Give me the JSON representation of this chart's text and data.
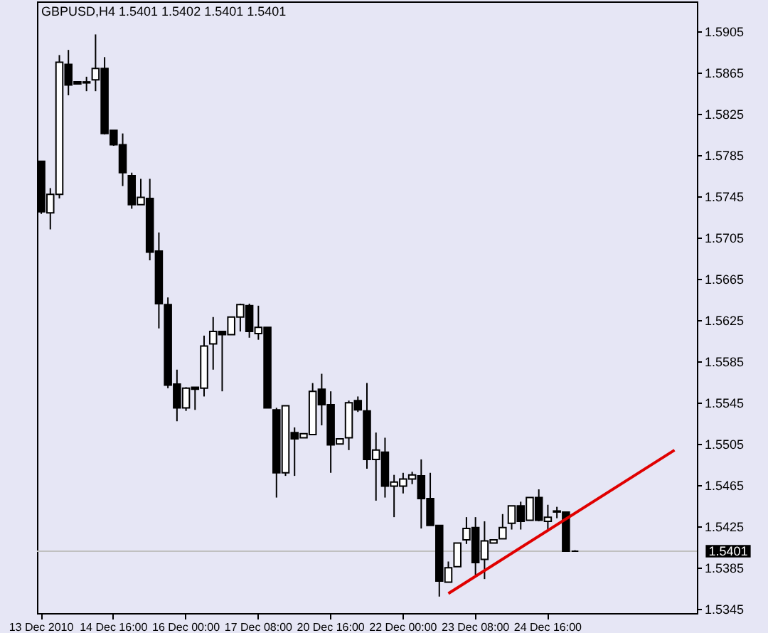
{
  "chart_data": {
    "type": "candlestick",
    "title": "GBPUSD,H4  1.5401 1.5402 1.5401 1.5401",
    "categories": [
      "13 Dec 2010",
      null,
      null,
      null,
      null,
      null,
      null,
      null,
      "14 Dec 16:00",
      null,
      null,
      null,
      null,
      null,
      null,
      null,
      "16 Dec 00:00",
      null,
      null,
      null,
      null,
      null,
      null,
      null,
      "17 Dec 08:00",
      null,
      null,
      null,
      null,
      null,
      null,
      null,
      "20 Dec 16:00",
      null,
      null,
      null,
      null,
      null,
      null,
      null,
      "22 Dec 00:00",
      null,
      null,
      null,
      null,
      null,
      null,
      null,
      "23 Dec 08:00",
      null,
      null,
      null,
      null,
      null,
      null,
      null,
      "24 Dec 16:00",
      null,
      null,
      null,
      null,
      null,
      null,
      null,
      null,
      null,
      null,
      null,
      null,
      null,
      null,
      null,
      null
    ],
    "ohlc": [
      [
        1.5779,
        1.5779,
        1.5728,
        1.573
      ],
      [
        1.5729,
        1.5753,
        1.5713,
        1.5747
      ],
      [
        1.5747,
        1.5882,
        1.5743,
        1.5875
      ],
      [
        1.5873,
        1.5887,
        1.5843,
        1.5853
      ],
      [
        1.5856,
        1.5856,
        1.5854,
        1.5854
      ],
      [
        1.5856,
        1.5861,
        1.5847,
        1.5855
      ],
      [
        1.5858,
        1.5902,
        1.5847,
        1.5869
      ],
      [
        1.5869,
        1.588,
        1.5805,
        1.5806
      ],
      [
        1.5809,
        1.5809,
        1.5794,
        1.5795
      ],
      [
        1.5795,
        1.5806,
        1.5755,
        1.5768
      ],
      [
        1.5765,
        1.5768,
        1.5733,
        1.5737
      ],
      [
        1.5737,
        1.5762,
        1.5737,
        1.5744
      ],
      [
        1.5743,
        1.5762,
        1.5683,
        1.5691
      ],
      [
        1.5692,
        1.571,
        1.5617,
        1.5641
      ],
      [
        1.564,
        1.5647,
        1.5559,
        1.5562
      ],
      [
        1.5563,
        1.5577,
        1.5527,
        1.554
      ],
      [
        1.554,
        1.556,
        1.5537,
        1.5559
      ],
      [
        1.556,
        1.556,
        1.5538,
        1.5558
      ],
      [
        1.5559,
        1.561,
        1.5551,
        1.56
      ],
      [
        1.5602,
        1.5628,
        1.5577,
        1.5614
      ],
      [
        1.5614,
        1.5614,
        1.5556,
        1.5611
      ],
      [
        1.5611,
        1.5628,
        1.5611,
        1.5628
      ],
      [
        1.5628,
        1.5641,
        1.5614,
        1.564
      ],
      [
        1.5639,
        1.5641,
        1.5608,
        1.5614
      ],
      [
        1.5612,
        1.5639,
        1.5606,
        1.5618
      ],
      [
        1.5618,
        1.5618,
        1.554,
        1.554
      ],
      [
        1.5538,
        1.554,
        1.5453,
        1.5477
      ],
      [
        1.5477,
        1.5542,
        1.5474,
        1.5542
      ],
      [
        1.5516,
        1.5521,
        1.5474,
        1.551
      ],
      [
        1.5511,
        1.5515,
        1.5511,
        1.5515
      ],
      [
        1.5514,
        1.5564,
        1.5514,
        1.5556
      ],
      [
        1.5558,
        1.5573,
        1.5523,
        1.5543
      ],
      [
        1.5543,
        1.5556,
        1.5477,
        1.5504
      ],
      [
        1.5505,
        1.551,
        1.5505,
        1.551
      ],
      [
        1.5511,
        1.5547,
        1.5499,
        1.5545
      ],
      [
        1.5547,
        1.5551,
        1.5536,
        1.5538
      ],
      [
        1.5537,
        1.5564,
        1.5481,
        1.549
      ],
      [
        1.549,
        1.5516,
        1.545,
        1.5499
      ],
      [
        1.5497,
        1.5511,
        1.5453,
        1.5464
      ],
      [
        1.5464,
        1.5475,
        1.5434,
        1.5468
      ],
      [
        1.5464,
        1.5477,
        1.5457,
        1.5471
      ],
      [
        1.5471,
        1.5478,
        1.5466,
        1.5475
      ],
      [
        1.5474,
        1.549,
        1.5423,
        1.5452
      ],
      [
        1.5452,
        1.5477,
        1.5426,
        1.5426
      ],
      [
        1.5426,
        1.5426,
        1.5357,
        1.5372
      ],
      [
        1.5371,
        1.5391,
        1.5371,
        1.5385
      ],
      [
        1.5386,
        1.5409,
        1.5386,
        1.5409
      ],
      [
        1.5412,
        1.5434,
        1.5408,
        1.5423
      ],
      [
        1.5424,
        1.5434,
        1.5378,
        1.539
      ],
      [
        1.5393,
        1.543,
        1.5374,
        1.5411
      ],
      [
        1.5409,
        1.5412,
        1.5409,
        1.5412
      ],
      [
        1.5413,
        1.5437,
        1.5413,
        1.5424
      ],
      [
        1.5428,
        1.5445,
        1.5422,
        1.5445
      ],
      [
        1.5445,
        1.5449,
        1.5422,
        1.543
      ],
      [
        1.5431,
        1.5453,
        1.5431,
        1.5453
      ],
      [
        1.5453,
        1.5461,
        1.543,
        1.5431
      ],
      [
        1.543,
        1.5446,
        1.5422,
        1.5434
      ],
      [
        1.5439,
        1.5444,
        1.5433,
        1.544
      ],
      [
        1.5439,
        1.5439,
        1.5401,
        1.5401
      ],
      [
        1.5401,
        1.5402,
        1.5401,
        1.5401
      ],
      null,
      null,
      null,
      null,
      null,
      null,
      null,
      null,
      null,
      null,
      null,
      null,
      null
    ],
    "colors": [
      "#000000",
      "#ffffff",
      "#ffffff",
      "#000000",
      "#000000",
      "#000000",
      "#ffffff",
      "#000000",
      "#000000",
      "#000000",
      "#000000",
      "#ffffff",
      "#000000",
      "#000000",
      "#000000",
      "#000000",
      "#ffffff",
      "#000000",
      "#ffffff",
      "#ffffff",
      "#000000",
      "#ffffff",
      "#ffffff",
      "#000000",
      "#ffffff",
      "#000000",
      "#000000",
      "#ffffff",
      "#000000",
      "#ffffff",
      "#ffffff",
      "#000000",
      "#000000",
      "#ffffff",
      "#ffffff",
      "#000000",
      "#000000",
      "#ffffff",
      "#000000",
      "#ffffff",
      "#ffffff",
      "#ffffff",
      "#000000",
      "#000000",
      "#000000",
      "#ffffff",
      "#ffffff",
      "#ffffff",
      "#000000",
      "#ffffff",
      "#ffffff",
      "#ffffff",
      "#ffffff",
      "#000000",
      "#ffffff",
      "#000000",
      "#ffffff",
      "#ffffff",
      "#000000",
      "#000000",
      null,
      null,
      null,
      null,
      null,
      null,
      null,
      null,
      null,
      null,
      null,
      null,
      null
    ],
    "series": [
      {
        "type": "line",
        "color": "#e00000",
        "values": [
          null,
          null,
          null,
          null,
          null,
          null,
          null,
          null,
          null,
          null,
          null,
          null,
          null,
          null,
          null,
          null,
          null,
          null,
          null,
          null,
          null,
          null,
          null,
          null,
          null,
          null,
          null,
          null,
          null,
          null,
          null,
          null,
          null,
          null,
          null,
          null,
          null,
          null,
          null,
          null,
          null,
          null,
          null,
          null,
          null,
          1.536,
          null,
          null,
          null,
          null,
          null,
          null,
          null,
          null,
          null,
          null,
          null,
          null,
          null,
          null,
          null,
          null,
          null,
          null,
          null,
          null,
          null,
          null,
          null,
          null,
          1.5499,
          null,
          null
        ]
      }
    ],
    "ylim": [
      1.5341,
      1.5934
    ],
    "yticks": [
      1.5345,
      1.5385,
      1.5425,
      1.5465,
      1.5505,
      1.5545,
      1.5585,
      1.5625,
      1.5665,
      1.5705,
      1.5745,
      1.5785,
      1.5825,
      1.5865,
      1.5905
    ],
    "ref_lines": [
      {
        "axis": "y",
        "value": 1.5401,
        "label": "1.5401",
        "color": "#c0c0c0"
      }
    ],
    "grid": false
  }
}
